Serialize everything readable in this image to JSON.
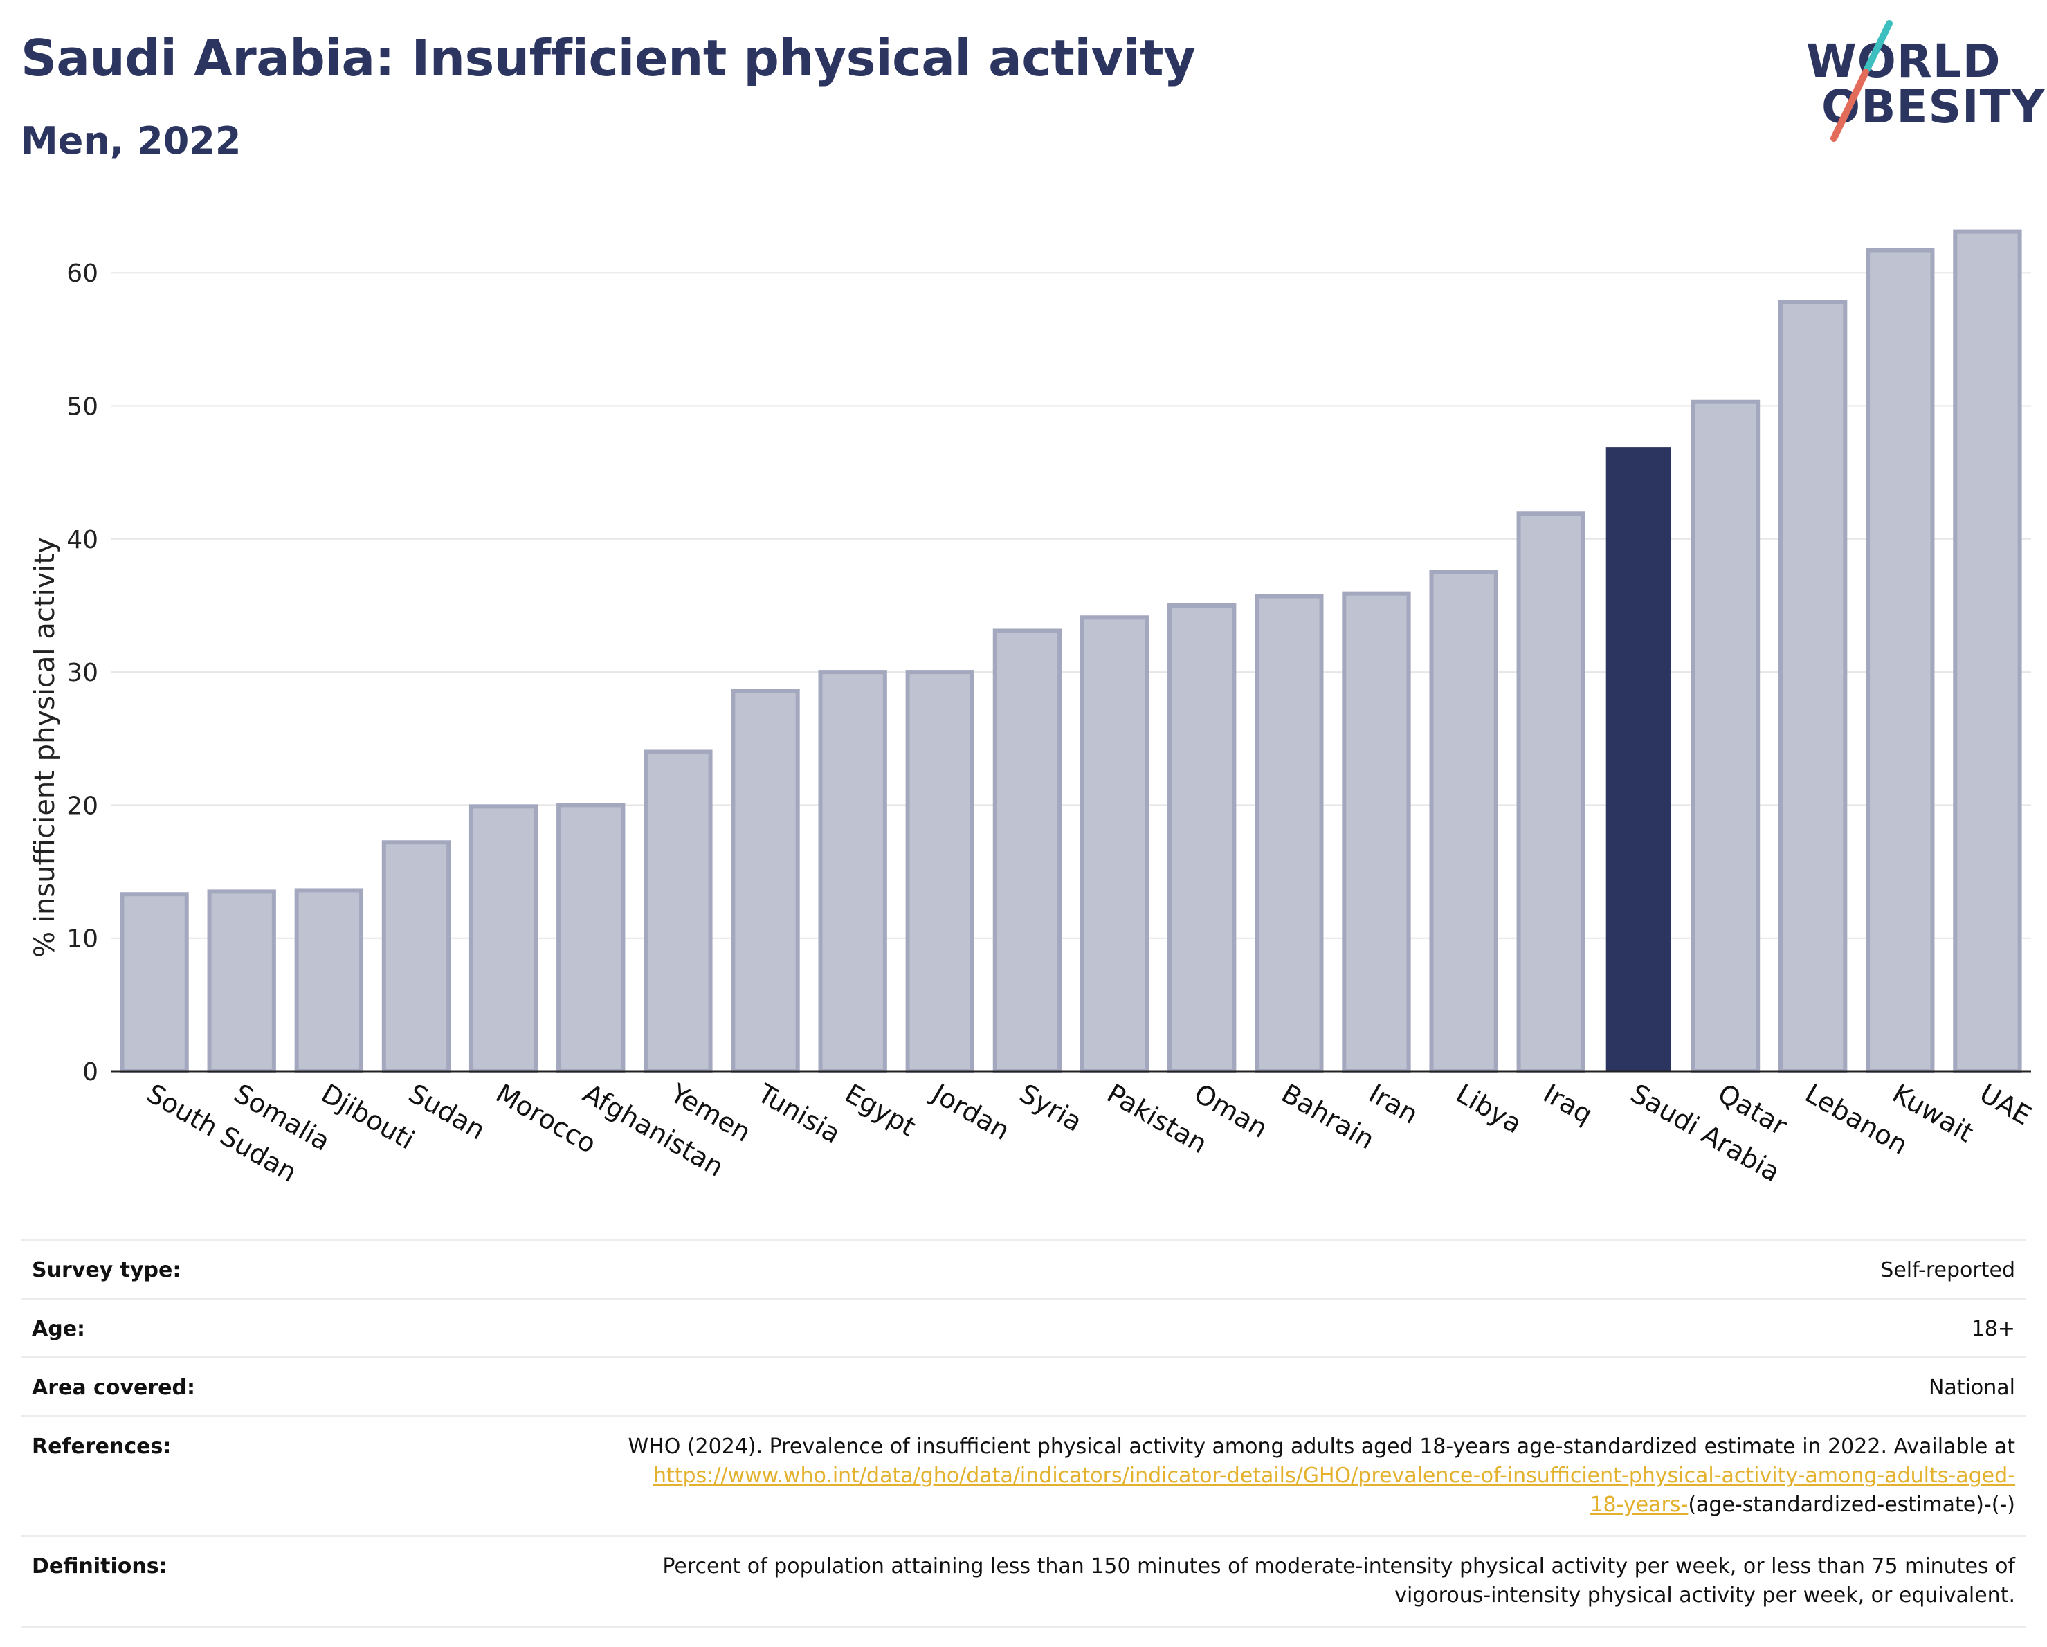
{
  "header": {
    "title": "Saudi Arabia: Insufficient physical activity",
    "subtitle": "Men, 2022"
  },
  "logo": {
    "line1": "WORLD",
    "line2": "OBESITY"
  },
  "colors": {
    "highlight": "#2b3560",
    "bar": "#bfc2d0",
    "bar_border": "#a3a8be",
    "accent_teal": "#3dbfbf",
    "accent_red": "#e26b5a",
    "link": "#e3b12d"
  },
  "chart_data": {
    "type": "bar",
    "title": "Saudi Arabia: Insufficient physical activity",
    "subtitle": "Men, 2022",
    "xlabel": "",
    "ylabel": "% insufficient physical activity",
    "ylim": [
      0,
      64
    ],
    "yticks": [
      0,
      10,
      20,
      30,
      40,
      50,
      60
    ],
    "grid": true,
    "highlight": "Saudi Arabia",
    "categories": [
      "South Sudan",
      "Somalia",
      "Djibouti",
      "Sudan",
      "Morocco",
      "Afghanistan",
      "Yemen",
      "Tunisia",
      "Egypt",
      "Jordan",
      "Syria",
      "Pakistan",
      "Oman",
      "Bahrain",
      "Iran",
      "Libya",
      "Iraq",
      "Saudi Arabia",
      "Qatar",
      "Lebanon",
      "Kuwait",
      "UAE"
    ],
    "values": [
      13.3,
      13.5,
      13.6,
      17.2,
      19.9,
      20.0,
      24.0,
      28.6,
      30.0,
      30.0,
      33.1,
      34.1,
      35.0,
      35.7,
      35.9,
      37.5,
      41.9,
      46.9,
      50.3,
      57.8,
      61.7,
      63.1
    ]
  },
  "info": {
    "survey_type_label": "Survey type:",
    "survey_type_value": "Self-reported",
    "age_label": "Age:",
    "age_value": "18+",
    "area_label": "Area covered:",
    "area_value": "National",
    "references_label": "References:",
    "references_text": "WHO (2024). Prevalence of insufficient physical activity among adults aged 18-years age-standardized estimate in 2022. Available at",
    "references_link_a": "https://www.who.int/data/gho/data/indicators/indicator-details/GHO/prevalence-of-insufficient-physical-activity-among-adults-aged-",
    "references_link_b": "18-years-",
    "references_tail": "(age-standardized-estimate)-(-)",
    "definitions_label": "Definitions:",
    "definitions_text": "Percent of population attaining less than 150 minutes of moderate-intensity physical activity per week, or less than 75 minutes of vigorous-intensity physical activity per week, or equivalent."
  }
}
